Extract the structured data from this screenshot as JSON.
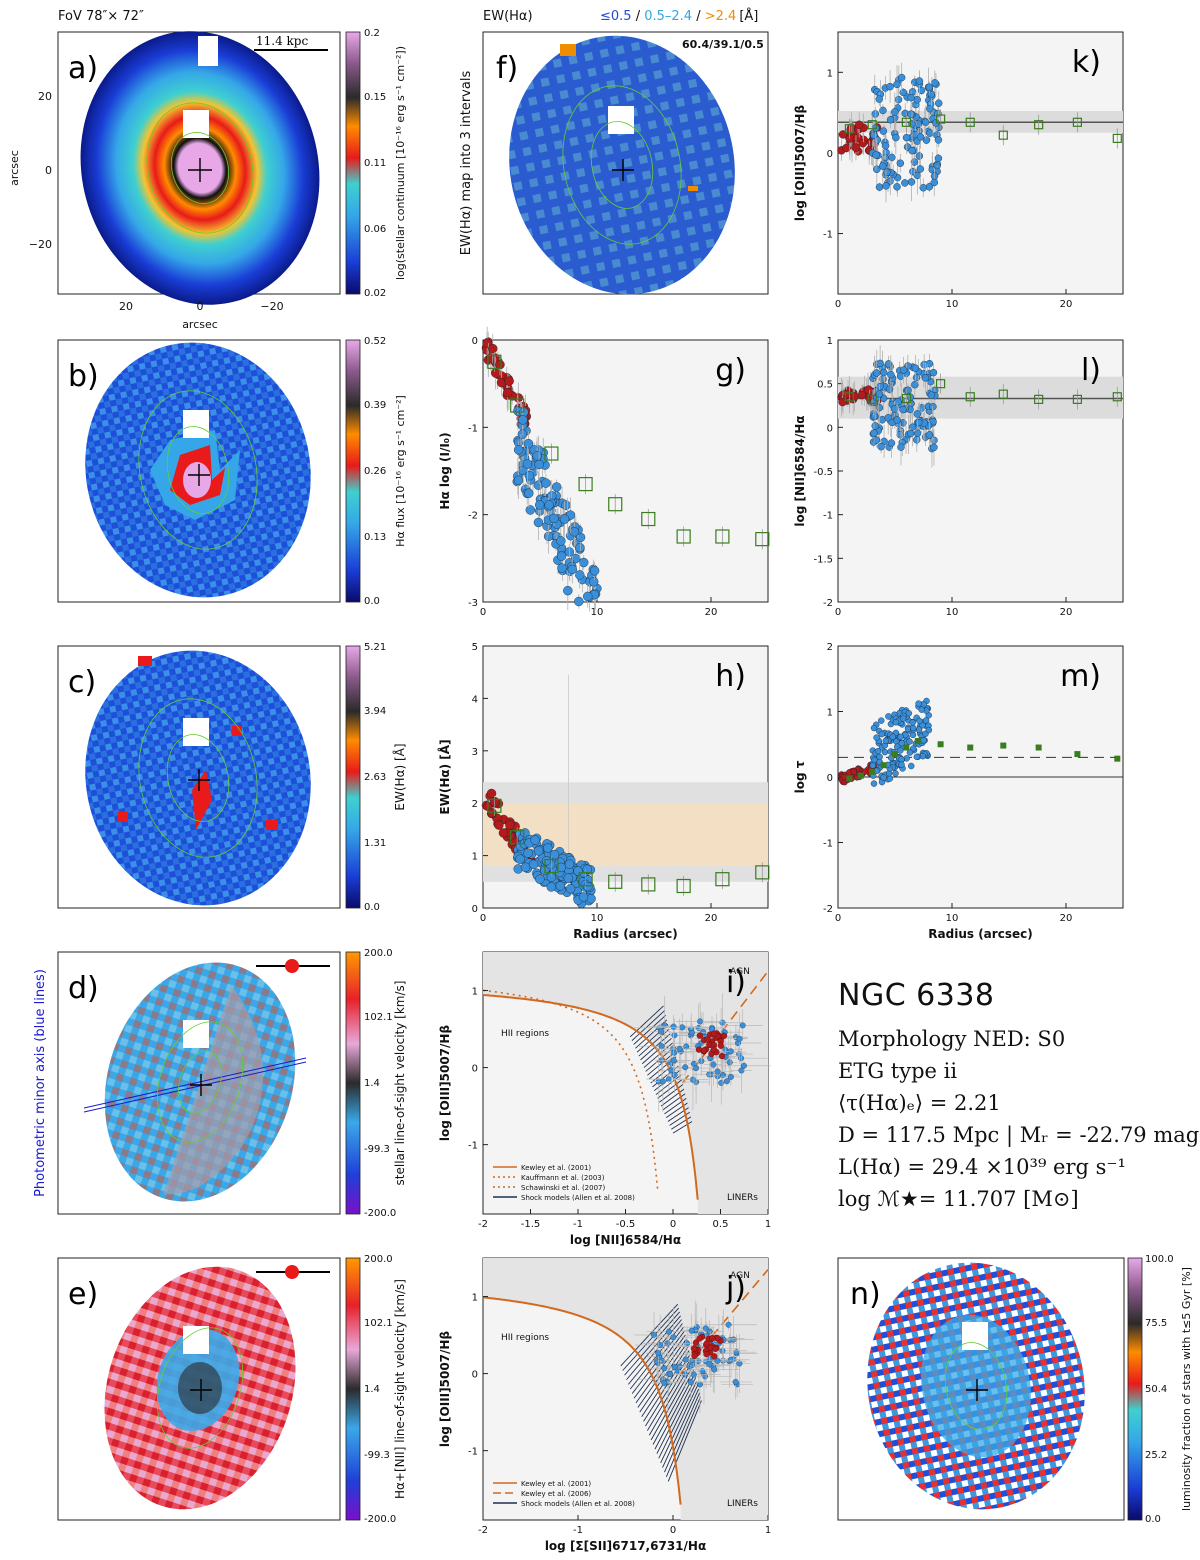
{
  "header": {
    "fov": "FoV 78″× 72″",
    "ew_title": "EW(Hα)",
    "ew_bins": [
      "≤0.5",
      "0.5–2.4",
      ">2.4"
    ],
    "ew_bin_colors": [
      "#1f4fd1",
      "#33a6e3",
      "#f08c00"
    ],
    "ew_sep": " / ",
    "ew_unit": "[Å]",
    "ew_ratio": "60.4/39.1/0.5",
    "scalebar": "11.4 kpc"
  },
  "maps": [
    {
      "id": "a",
      "label": "a)",
      "cbar_label": "log(stellar continuum [10⁻¹⁶ erg s⁻¹ cm⁻²])",
      "cbar_ticks": [
        "0.2",
        "0.15",
        "0.11",
        "0.06",
        "0.02"
      ],
      "cmap": "a"
    },
    {
      "id": "b",
      "label": "b)",
      "cbar_label": "Hα flux [10⁻¹⁶ erg s⁻¹ cm⁻²]",
      "cbar_ticks": [
        "0.52",
        "0.39",
        "0.26",
        "0.13",
        "0.0"
      ],
      "cmap": "a"
    },
    {
      "id": "c",
      "label": "c)",
      "cbar_label": "EW(Hα) [Å]",
      "cbar_ticks": [
        "5.21",
        "3.94",
        "2.63",
        "1.31",
        "0.0"
      ],
      "cmap": "a"
    },
    {
      "id": "d",
      "label": "d)",
      "cbar_label": "stellar line-of-sight velocity [km/s]",
      "cbar_ticks": [
        "200.0",
        "102.1",
        "1.4",
        "-99.3",
        "-200.0"
      ],
      "cmap": "v"
    },
    {
      "id": "e",
      "label": "e)",
      "cbar_label": "Hα+[NII] line-of-sight velocity [km/s]",
      "cbar_ticks": [
        "200.0",
        "102.1",
        "1.4",
        "-99.3",
        "-200.0"
      ],
      "cmap": "v"
    },
    {
      "id": "f",
      "label": "f)",
      "ylabel": "EW(Hα) map into 3 intervals"
    },
    {
      "id": "n",
      "label": "n)",
      "cbar_label": "luminosity fraction of stars with t≤5 Gyr [%]",
      "cbar_ticks": [
        "100.0",
        "75.5",
        "50.4",
        "25.2",
        "0.0"
      ],
      "cmap": "a"
    }
  ],
  "axes_a": {
    "xlabel": "arcsec",
    "ylabel": "arcsec",
    "xticks": [
      "20",
      "0",
      "−20"
    ],
    "yticks": [
      "20",
      "0",
      "−20"
    ]
  },
  "side_label_d": "Photometric minor axis (blue lines)",
  "chart_data": [
    {
      "id": "g",
      "type": "scatter",
      "label": "g)",
      "ylabel": "Hα log (I/I₀)",
      "xlim": [
        0,
        25
      ],
      "ylim": [
        -3,
        0
      ],
      "xticks": [
        0,
        10,
        20
      ],
      "yticks": [
        0,
        -1,
        -2,
        -3
      ],
      "profile_x": [
        1,
        3,
        6,
        9,
        11.6,
        14.5,
        17.6,
        21,
        24.5
      ],
      "profile_y": [
        -0.25,
        -0.75,
        -1.3,
        -1.65,
        -1.88,
        -2.05,
        -2.25,
        -2.25,
        -2.28
      ]
    },
    {
      "id": "h",
      "type": "scatter",
      "label": "h)",
      "xlabel": "Radius (arcsec)",
      "ylabel": "EW(Hα) [Å]",
      "xlim": [
        0,
        25
      ],
      "ylim": [
        0,
        5
      ],
      "xticks": [
        0,
        10,
        20
      ],
      "yticks": [
        0,
        1,
        2,
        3,
        4,
        5
      ],
      "profile_x": [
        1,
        3,
        6,
        9,
        11.6,
        14.5,
        17.6,
        21,
        24.5
      ],
      "profile_y": [
        1.95,
        1.35,
        0.8,
        0.55,
        0.5,
        0.45,
        0.42,
        0.55,
        0.68
      ],
      "band_grey": [
        0.5,
        2.4
      ],
      "band_orange": [
        0.8,
        2.0
      ]
    },
    {
      "id": "k",
      "type": "scatter",
      "label": "k)",
      "ylabel": "log [OIII]5007/Hβ",
      "xlim": [
        0,
        25
      ],
      "ylim": [
        -1.75,
        1.5
      ],
      "xticks": [
        0,
        10,
        20
      ],
      "yticks": [
        1,
        0,
        -1
      ],
      "hline": 0.38,
      "band": [
        0.25,
        0.52
      ],
      "profile_x": [
        1,
        3,
        6,
        9,
        11.6,
        14.5,
        17.6,
        21,
        24.5
      ],
      "profile_y": [
        0.3,
        0.35,
        0.38,
        0.42,
        0.38,
        0.22,
        0.35,
        0.38,
        0.18
      ]
    },
    {
      "id": "l",
      "type": "scatter",
      "label": "l)",
      "ylabel": "log [NII]6584/Hα",
      "xlim": [
        0,
        25
      ],
      "ylim": [
        -2,
        1
      ],
      "xticks": [
        0,
        10,
        20
      ],
      "yticks": [
        1,
        0.5,
        0,
        -0.5,
        -1,
        -1.5,
        -2
      ],
      "hline": 0.33,
      "band": [
        0.1,
        0.58
      ],
      "profile_x": [
        1,
        3,
        6,
        9,
        11.6,
        14.5,
        17.6,
        21,
        24.5
      ],
      "profile_y": [
        0.35,
        0.32,
        0.33,
        0.5,
        0.35,
        0.38,
        0.32,
        0.32,
        0.35
      ]
    },
    {
      "id": "m",
      "type": "scatter",
      "label": "m)",
      "xlabel": "Radius (arcsec)",
      "ylabel": "log τ",
      "xlim": [
        0,
        25
      ],
      "ylim": [
        -2,
        2
      ],
      "xticks": [
        0,
        10,
        20
      ],
      "yticks": [
        2,
        1,
        0,
        -1,
        -2
      ],
      "dashed": 0.3,
      "solid": 0.0,
      "profile_x": [
        1,
        2,
        3,
        4,
        5,
        6,
        7,
        9,
        11.6,
        14.5,
        17.6,
        21,
        24.5
      ],
      "profile_y": [
        -0.02,
        0.02,
        0.08,
        0.18,
        0.35,
        0.45,
        0.55,
        0.5,
        0.45,
        0.48,
        0.45,
        0.35,
        0.28
      ]
    },
    {
      "id": "i",
      "type": "scatter",
      "label": "i)",
      "xlabel": "log [NII]6584/Hα",
      "ylabel": "log [OIII]5007/Hβ",
      "xlim": [
        -2,
        1
      ],
      "ylim": [
        -1.9,
        1.5
      ],
      "xticks": [
        "-2",
        "-1.5",
        "-1",
        "-0.5",
        "0",
        "0.5",
        "1"
      ],
      "yticks": [
        "1",
        "0",
        "-1"
      ],
      "region_labels": {
        "agn": "AGN",
        "hii": "HII regions",
        "liner": "LINERs"
      },
      "legend": [
        "Kewley et al. (2001)",
        "Kauffmann et al. (2003)",
        "Schawinski et al. (2007)",
        "Shock models (Allen et al. 2008)"
      ]
    },
    {
      "id": "j",
      "type": "scatter",
      "label": "j)",
      "xlabel": "log [Σ[SII]6717,6731/Hα",
      "ylabel": "log [OIII]5007/Hβ",
      "xlim": [
        -2,
        1
      ],
      "ylim": [
        -1.9,
        1.5
      ],
      "xticks": [
        "-2",
        "-1",
        "0",
        "1"
      ],
      "yticks": [
        "1",
        "0",
        "-1"
      ],
      "region_labels": {
        "agn": "AGN",
        "hii": "HII regions",
        "liner": "LINERs"
      },
      "legend": [
        "Kewley et al. (2001)",
        "Kewley et al. (2006)",
        "Shock models (Allen et al. 2008)"
      ]
    }
  ],
  "info": {
    "name": "NGC 6338",
    "morph": "Morphology NED: S0",
    "etg": "ETG type ii",
    "tau": "⟨τ(Hα)ₑ⟩ = 2.21",
    "dist": "D = 117.5 Mpc | Mᵣ = -22.79 mag",
    "lha": "L(Hα) = 29.4 ×10³⁹ erg s⁻¹",
    "mass": "log ℳ★= 11.707 [M⊙]"
  },
  "colors": {
    "red": "#b31b1b",
    "blue": "#3b8fd8",
    "green": "#3a7d1e",
    "kewley": "#d2691e"
  }
}
